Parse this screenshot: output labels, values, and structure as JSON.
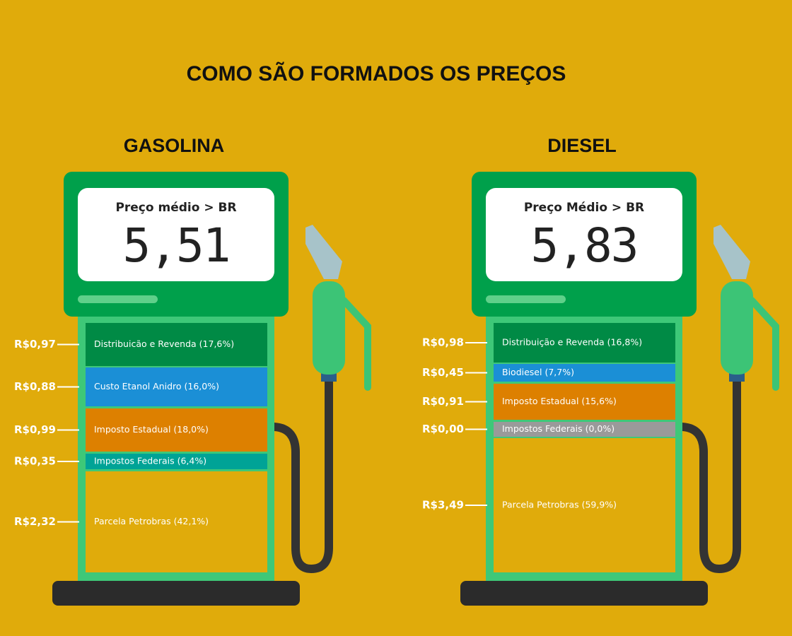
{
  "title": "COMO SÃO FORMADOS OS PREÇOS",
  "pumps": [
    {
      "heading": "GASOLINA",
      "display_label": "Preço médio > BR",
      "price": "5,51",
      "segments": [
        {
          "value": "R$0,97",
          "label": "Distribuicão e Revenda (17,6%)",
          "color": "#008a45"
        },
        {
          "value": "R$0,88",
          "label": "Custo Etanol Anidro (16,0%)",
          "color": "#1b8fd6"
        },
        {
          "value": "R$0,99",
          "label": "Imposto Estadual (18,0%)",
          "color": "#dd8000"
        },
        {
          "value": "R$0,35",
          "label": "Impostos Federais (6,4%)",
          "color": "#00a396"
        },
        {
          "value": "R$2,32",
          "label": "Parcela Petrobras (42,1%)",
          "color": "#e0ab0b"
        }
      ]
    },
    {
      "heading": "DIESEL",
      "display_label": "Preço Médio > BR",
      "price": "5,83",
      "segments": [
        {
          "value": "R$0,98",
          "label": "Distribuição e Revenda (16,8%)",
          "color": "#008a45"
        },
        {
          "value": "R$0,45",
          "label": "Biodiesel (7,7%)",
          "color": "#1b8fd6"
        },
        {
          "value": "R$0,91",
          "label": "Imposto Estadual (15,6%)",
          "color": "#dd8000"
        },
        {
          "value": "R$0,00",
          "label": "Impostos Federais (0,0%)",
          "color": "#9a9a9a"
        },
        {
          "value": "R$3,49",
          "label": "Parcela Petrobras (59,9%)",
          "color": "#e0ab0b"
        }
      ]
    }
  ]
}
